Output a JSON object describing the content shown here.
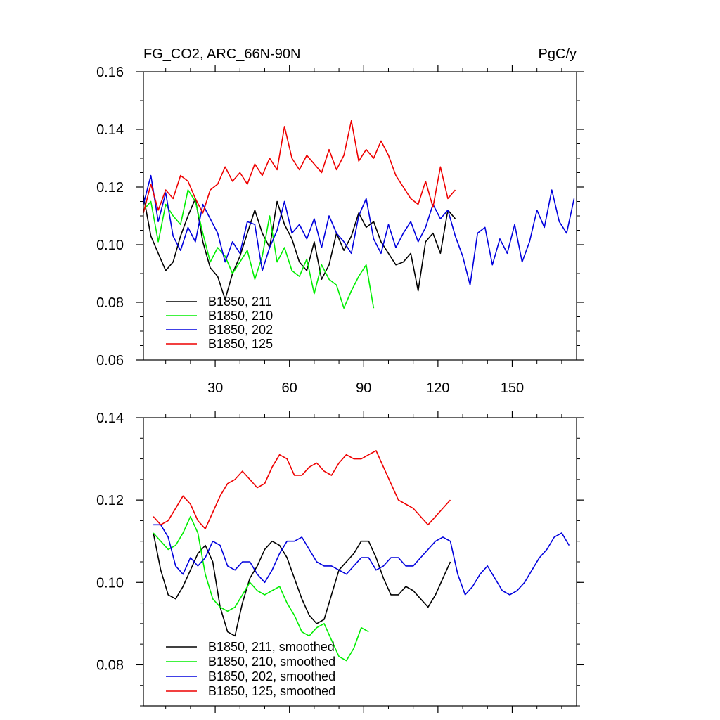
{
  "chart_data": [
    {
      "type": "line",
      "title_left": "FG_CO2, ARC_66N-90N",
      "title_right": "PgC/y",
      "xlabel": "",
      "ylabel": "",
      "xlim": [
        1,
        176
      ],
      "ylim": [
        0.06,
        0.16
      ],
      "y_ticks": [
        0.06,
        0.08,
        0.1,
        0.12,
        0.14,
        0.16
      ],
      "y_tick_labels": [
        "0.06",
        "0.08",
        "0.10",
        "0.12",
        "0.14",
        "0.16"
      ],
      "x_ticks": [
        30,
        60,
        90,
        120,
        150
      ],
      "x_tick_labels": [
        "30",
        "60",
        "90",
        "120",
        "150"
      ],
      "grid": false,
      "legend_position": "bottom-left",
      "series": [
        {
          "name": "B1850, 211",
          "color": "#000000",
          "x": [
            1,
            4,
            7,
            10,
            13,
            16,
            19,
            22,
            25,
            28,
            31,
            34,
            37,
            40,
            43,
            46,
            49,
            52,
            55,
            58,
            61,
            64,
            67,
            70,
            73,
            76,
            79,
            82,
            85,
            88,
            91,
            94,
            97,
            100,
            103,
            106,
            109,
            112,
            115,
            118,
            121,
            124,
            127
          ],
          "values": [
            0.117,
            0.103,
            0.097,
            0.091,
            0.094,
            0.103,
            0.11,
            0.116,
            0.101,
            0.092,
            0.089,
            0.081,
            0.09,
            0.096,
            0.104,
            0.112,
            0.104,
            0.099,
            0.115,
            0.107,
            0.102,
            0.094,
            0.091,
            0.101,
            0.088,
            0.093,
            0.104,
            0.098,
            0.103,
            0.111,
            0.106,
            0.108,
            0.101,
            0.097,
            0.093,
            0.094,
            0.097,
            0.084,
            0.101,
            0.104,
            0.097,
            0.112,
            0.109
          ]
        },
        {
          "name": "B1850, 210",
          "color": "#00ee00",
          "x": [
            1,
            4,
            7,
            10,
            13,
            16,
            19,
            22,
            25,
            28,
            31,
            34,
            37,
            40,
            43,
            46,
            49,
            52,
            55,
            58,
            61,
            64,
            67,
            70,
            73,
            76,
            79,
            82,
            85,
            88,
            91,
            94
          ],
          "values": [
            0.112,
            0.115,
            0.101,
            0.114,
            0.11,
            0.107,
            0.119,
            0.115,
            0.104,
            0.094,
            0.099,
            0.096,
            0.09,
            0.094,
            0.098,
            0.088,
            0.096,
            0.11,
            0.094,
            0.099,
            0.091,
            0.089,
            0.095,
            0.083,
            0.093,
            0.088,
            0.086,
            0.078,
            0.084,
            0.089,
            0.093,
            0.078
          ]
        },
        {
          "name": "B1850, 202",
          "color": "#0000dd",
          "x": [
            1,
            4,
            7,
            10,
            13,
            16,
            19,
            22,
            25,
            28,
            31,
            34,
            37,
            40,
            43,
            46,
            49,
            52,
            55,
            58,
            61,
            64,
            67,
            70,
            73,
            76,
            79,
            82,
            85,
            88,
            91,
            94,
            97,
            100,
            103,
            106,
            109,
            112,
            115,
            118,
            121,
            124,
            127,
            130,
            133,
            136,
            139,
            142,
            145,
            148,
            151,
            154,
            157,
            160,
            163,
            166,
            169,
            172,
            175
          ],
          "values": [
            0.114,
            0.124,
            0.108,
            0.118,
            0.103,
            0.098,
            0.106,
            0.101,
            0.114,
            0.109,
            0.104,
            0.094,
            0.101,
            0.097,
            0.108,
            0.107,
            0.091,
            0.099,
            0.105,
            0.115,
            0.104,
            0.107,
            0.102,
            0.109,
            0.099,
            0.11,
            0.104,
            0.101,
            0.097,
            0.11,
            0.116,
            0.102,
            0.097,
            0.107,
            0.099,
            0.104,
            0.108,
            0.101,
            0.106,
            0.114,
            0.109,
            0.112,
            0.103,
            0.096,
            0.086,
            0.104,
            0.106,
            0.093,
            0.102,
            0.097,
            0.107,
            0.094,
            0.101,
            0.112,
            0.106,
            0.119,
            0.108,
            0.104,
            0.116
          ]
        },
        {
          "name": "B1850, 125",
          "color": "#ee0000",
          "x": [
            1,
            4,
            7,
            10,
            13,
            16,
            19,
            22,
            25,
            28,
            31,
            34,
            37,
            40,
            43,
            46,
            49,
            52,
            55,
            58,
            61,
            64,
            67,
            70,
            73,
            76,
            79,
            82,
            85,
            88,
            91,
            94,
            97,
            100,
            103,
            106,
            109,
            112,
            115,
            118,
            121,
            124,
            127
          ],
          "values": [
            0.111,
            0.121,
            0.112,
            0.119,
            0.116,
            0.124,
            0.122,
            0.116,
            0.111,
            0.119,
            0.121,
            0.127,
            0.122,
            0.125,
            0.121,
            0.128,
            0.124,
            0.13,
            0.126,
            0.141,
            0.13,
            0.126,
            0.131,
            0.128,
            0.125,
            0.133,
            0.126,
            0.131,
            0.143,
            0.129,
            0.133,
            0.13,
            0.136,
            0.131,
            0.124,
            0.12,
            0.116,
            0.114,
            0.122,
            0.113,
            0.127,
            0.116,
            0.119
          ]
        }
      ]
    },
    {
      "type": "line",
      "title_left": "",
      "title_right": "",
      "xlabel": "",
      "ylabel": "",
      "xlim": [
        1,
        176
      ],
      "ylim": [
        0.07,
        0.14
      ],
      "y_ticks": [
        0.08,
        0.1,
        0.12,
        0.14
      ],
      "y_tick_labels": [
        "0.08",
        "0.10",
        "0.12",
        "0.14"
      ],
      "x_ticks": [
        30,
        60,
        90,
        120,
        150
      ],
      "x_tick_labels": [],
      "grid": false,
      "legend_position": "bottom-left",
      "series": [
        {
          "name": "B1850, 211, smoothed",
          "color": "#000000",
          "x": [
            5,
            8,
            11,
            14,
            17,
            20,
            23,
            26,
            29,
            32,
            35,
            38,
            41,
            44,
            47,
            50,
            53,
            56,
            59,
            62,
            65,
            68,
            71,
            74,
            77,
            80,
            83,
            86,
            89,
            92,
            95,
            98,
            101,
            104,
            107,
            110,
            113,
            116,
            119,
            122,
            125
          ],
          "values": [
            0.112,
            0.103,
            0.097,
            0.096,
            0.099,
            0.103,
            0.107,
            0.109,
            0.105,
            0.094,
            0.088,
            0.087,
            0.095,
            0.101,
            0.104,
            0.108,
            0.11,
            0.109,
            0.106,
            0.101,
            0.096,
            0.092,
            0.09,
            0.091,
            0.097,
            0.103,
            0.105,
            0.107,
            0.11,
            0.11,
            0.106,
            0.101,
            0.097,
            0.097,
            0.099,
            0.098,
            0.096,
            0.094,
            0.097,
            0.101,
            0.105
          ]
        },
        {
          "name": "B1850, 210, smoothed",
          "color": "#00ee00",
          "x": [
            5,
            8,
            11,
            14,
            17,
            20,
            23,
            26,
            29,
            32,
            35,
            38,
            41,
            44,
            47,
            50,
            53,
            56,
            59,
            62,
            65,
            68,
            71,
            74,
            77,
            80,
            83,
            86,
            89,
            92
          ],
          "values": [
            0.112,
            0.11,
            0.108,
            0.109,
            0.112,
            0.116,
            0.112,
            0.102,
            0.096,
            0.094,
            0.093,
            0.094,
            0.097,
            0.1,
            0.098,
            0.097,
            0.098,
            0.099,
            0.095,
            0.092,
            0.088,
            0.087,
            0.089,
            0.09,
            0.086,
            0.082,
            0.081,
            0.084,
            0.089,
            0.088
          ]
        },
        {
          "name": "B1850, 202, smoothed",
          "color": "#0000dd",
          "x": [
            5,
            8,
            11,
            14,
            17,
            20,
            23,
            26,
            29,
            32,
            35,
            38,
            41,
            44,
            47,
            50,
            53,
            56,
            59,
            62,
            65,
            68,
            71,
            74,
            77,
            80,
            83,
            86,
            89,
            92,
            95,
            98,
            101,
            104,
            107,
            110,
            113,
            116,
            119,
            122,
            125,
            128,
            131,
            134,
            137,
            140,
            143,
            146,
            149,
            152,
            155,
            158,
            161,
            164,
            167,
            170,
            173
          ],
          "values": [
            0.114,
            0.114,
            0.111,
            0.104,
            0.102,
            0.106,
            0.104,
            0.106,
            0.11,
            0.109,
            0.104,
            0.103,
            0.105,
            0.105,
            0.102,
            0.1,
            0.103,
            0.107,
            0.11,
            0.11,
            0.111,
            0.108,
            0.105,
            0.104,
            0.104,
            0.103,
            0.102,
            0.104,
            0.106,
            0.106,
            0.103,
            0.104,
            0.106,
            0.106,
            0.104,
            0.104,
            0.106,
            0.108,
            0.11,
            0.111,
            0.11,
            0.102,
            0.097,
            0.099,
            0.102,
            0.104,
            0.101,
            0.098,
            0.097,
            0.098,
            0.1,
            0.103,
            0.106,
            0.108,
            0.111,
            0.112,
            0.109
          ]
        },
        {
          "name": "B1850, 125, smoothed",
          "color": "#ee0000",
          "x": [
            5,
            8,
            11,
            14,
            17,
            20,
            23,
            26,
            29,
            32,
            35,
            38,
            41,
            44,
            47,
            50,
            53,
            56,
            59,
            62,
            65,
            68,
            71,
            74,
            77,
            80,
            83,
            86,
            89,
            92,
            95,
            98,
            101,
            104,
            107,
            110,
            113,
            116,
            119,
            122,
            125
          ],
          "values": [
            0.116,
            0.114,
            0.115,
            0.118,
            0.121,
            0.119,
            0.115,
            0.113,
            0.117,
            0.121,
            0.124,
            0.125,
            0.127,
            0.125,
            0.123,
            0.124,
            0.128,
            0.131,
            0.13,
            0.126,
            0.126,
            0.128,
            0.129,
            0.127,
            0.126,
            0.129,
            0.131,
            0.13,
            0.13,
            0.131,
            0.132,
            0.128,
            0.124,
            0.12,
            0.119,
            0.118,
            0.116,
            0.114,
            0.116,
            0.118,
            0.12
          ]
        }
      ]
    }
  ]
}
